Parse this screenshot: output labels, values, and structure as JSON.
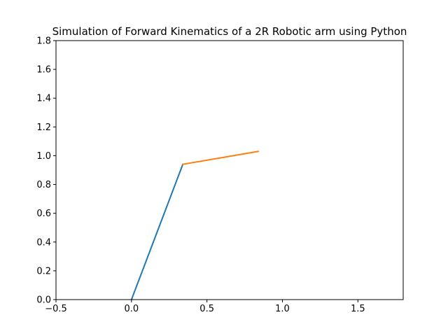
{
  "chart_data": {
    "type": "line",
    "title": "Simulation of Forward Kinematics of a 2R Robotic arm using Python",
    "xlabel": "",
    "ylabel": "",
    "xlim": [
      -0.5,
      1.8
    ],
    "ylim": [
      0.0,
      1.8
    ],
    "xticks": [
      -0.5,
      0.0,
      0.5,
      1.0,
      1.5
    ],
    "xtick_labels": [
      "−0.5",
      "0.0",
      "0.5",
      "1.0",
      "1.5"
    ],
    "yticks": [
      0.0,
      0.2,
      0.4,
      0.6,
      0.8,
      1.0,
      1.2,
      1.4,
      1.6,
      1.8
    ],
    "ytick_labels": [
      "0.0",
      "0.2",
      "0.4",
      "0.6",
      "0.8",
      "1.0",
      "1.2",
      "1.4",
      "1.6",
      "1.8"
    ],
    "grid": false,
    "legend": false,
    "series": [
      {
        "color": "#1f77b4",
        "x": [
          0.0,
          0.34
        ],
        "y": [
          0.0,
          0.94
        ]
      },
      {
        "color": "#ff7f0e",
        "x": [
          0.34,
          0.84
        ],
        "y": [
          0.94,
          1.03
        ]
      }
    ]
  }
}
